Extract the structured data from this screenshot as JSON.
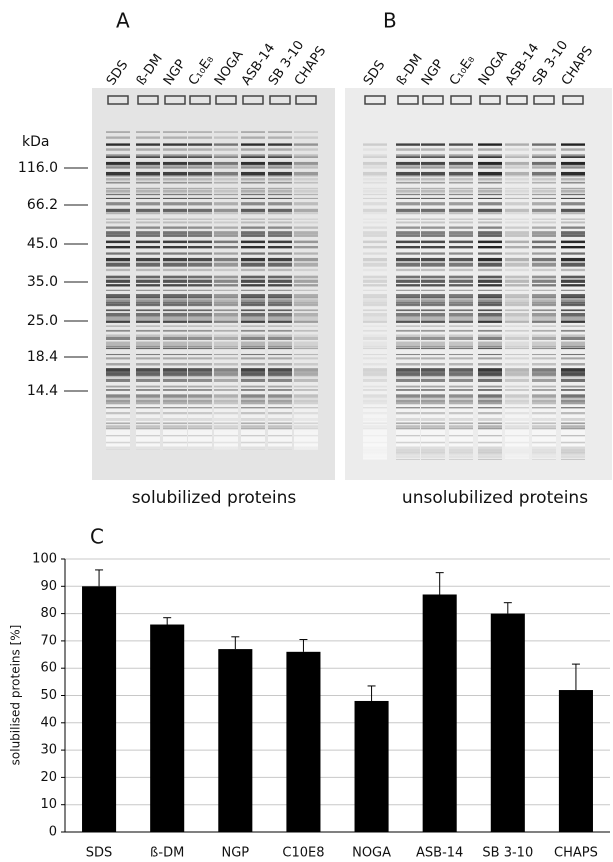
{
  "gels": [
    {
      "label": "A",
      "lanes": [
        "SDS",
        "ß-DM",
        "NGP",
        "C₁₀E₈",
        "NOGA",
        "ASB-14",
        "SB 3-10",
        "CHAPS"
      ],
      "caption": "solubilized proteins"
    },
    {
      "label": "B",
      "lanes": [
        "SDS",
        "ß-DM",
        "NGP",
        "C₁₀E₈",
        "NOGA",
        "ASB-14",
        "SB 3-10",
        "CHAPS"
      ],
      "caption": "unsolubilized proteins"
    }
  ],
  "markers": {
    "unit": "kDa",
    "labels": [
      "116.0",
      "66.2",
      "45.0",
      "35.0",
      "25.0",
      "18.4",
      "14.4"
    ]
  },
  "chart_data": {
    "type": "bar",
    "title": "C",
    "y_label": "solubilised proteins [%]",
    "categories": [
      "SDS",
      "ß-DM",
      "NGP",
      "C10E8",
      "NOGA",
      "ASB-14",
      "SB 3-10",
      "CHAPS"
    ],
    "values": [
      90,
      76,
      67,
      66,
      48,
      87,
      80,
      52
    ],
    "errors": [
      6,
      2.5,
      4.5,
      4.5,
      5.5,
      8,
      4,
      9.5
    ],
    "color": "#000000",
    "ylim": [
      0,
      100
    ],
    "yticks": [
      0,
      10,
      20,
      30,
      40,
      50,
      60,
      70,
      80,
      90,
      100
    ],
    "grid": true
  }
}
